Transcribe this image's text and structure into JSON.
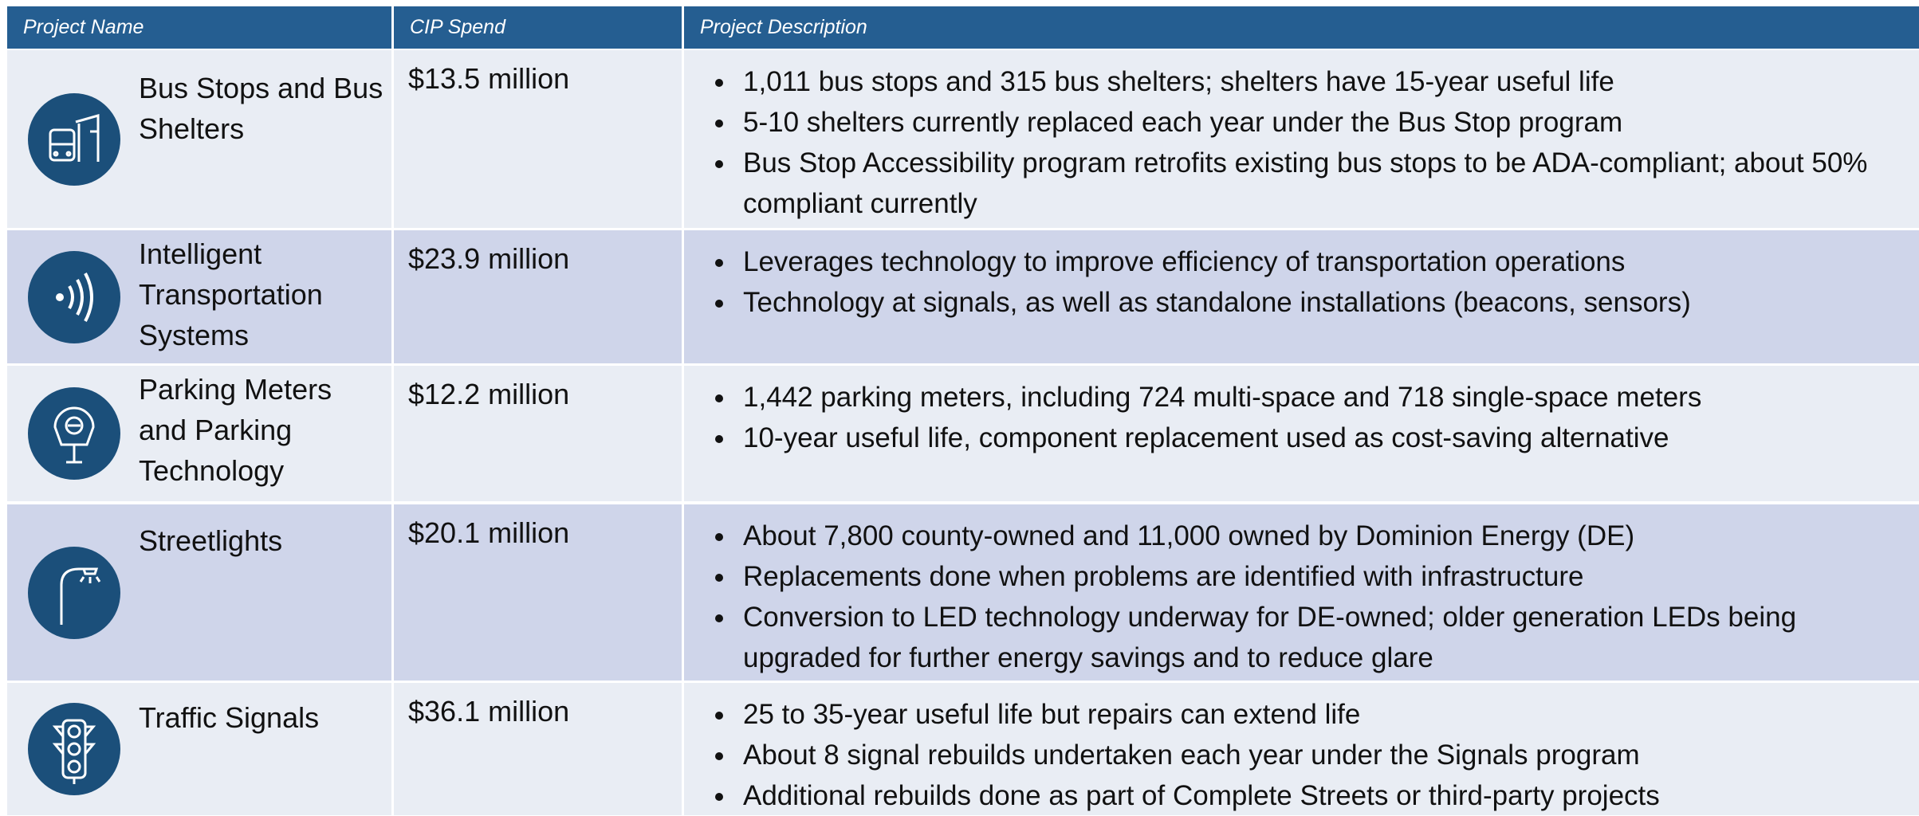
{
  "table": {
    "headers": [
      "Project Name",
      "CIP Spend",
      "Project Description"
    ],
    "rows": [
      {
        "name": "Bus Stops and Bus Shelters",
        "spend": "$13.5 million",
        "bullets": [
          "1,011 bus stops and 315 bus shelters; shelters have 15-year useful life",
          "5-10 shelters currently replaced each year under the Bus Stop program",
          "Bus Stop Accessibility program retrofits existing bus stops to be ADA-compliant; about 50% compliant currently"
        ]
      },
      {
        "name": "Intelligent Transportation Systems",
        "spend": "$23.9 million",
        "bullets": [
          "Leverages technology to improve efficiency of transportation operations",
          "Technology at signals, as well as standalone installations (beacons, sensors)"
        ]
      },
      {
        "name": "Parking Meters and Parking Technology",
        "spend": "$12.2 million",
        "bullets": [
          "1,442 parking meters, including 724 multi-space and 718 single-space meters",
          "10-year useful life, component replacement used as cost-saving alternative"
        ]
      },
      {
        "name": "Streetlights",
        "spend": "$20.1 million",
        "bullets": [
          "About 7,800 county-owned and 11,000 owned by Dominion Energy (DE)",
          "Replacements done when problems are identified with infrastructure",
          "Conversion to LED technology underway for DE-owned; older generation LEDs being upgraded for further energy savings and to reduce glare"
        ]
      },
      {
        "name": "Traffic Signals",
        "spend": "$36.1 million",
        "bullets": [
          "25 to 35-year useful life but repairs can extend life",
          "About 8 signal rebuilds undertaken each year under the Signals program",
          "Additional rebuilds done as part of Complete Streets or third-party projects"
        ]
      }
    ]
  }
}
